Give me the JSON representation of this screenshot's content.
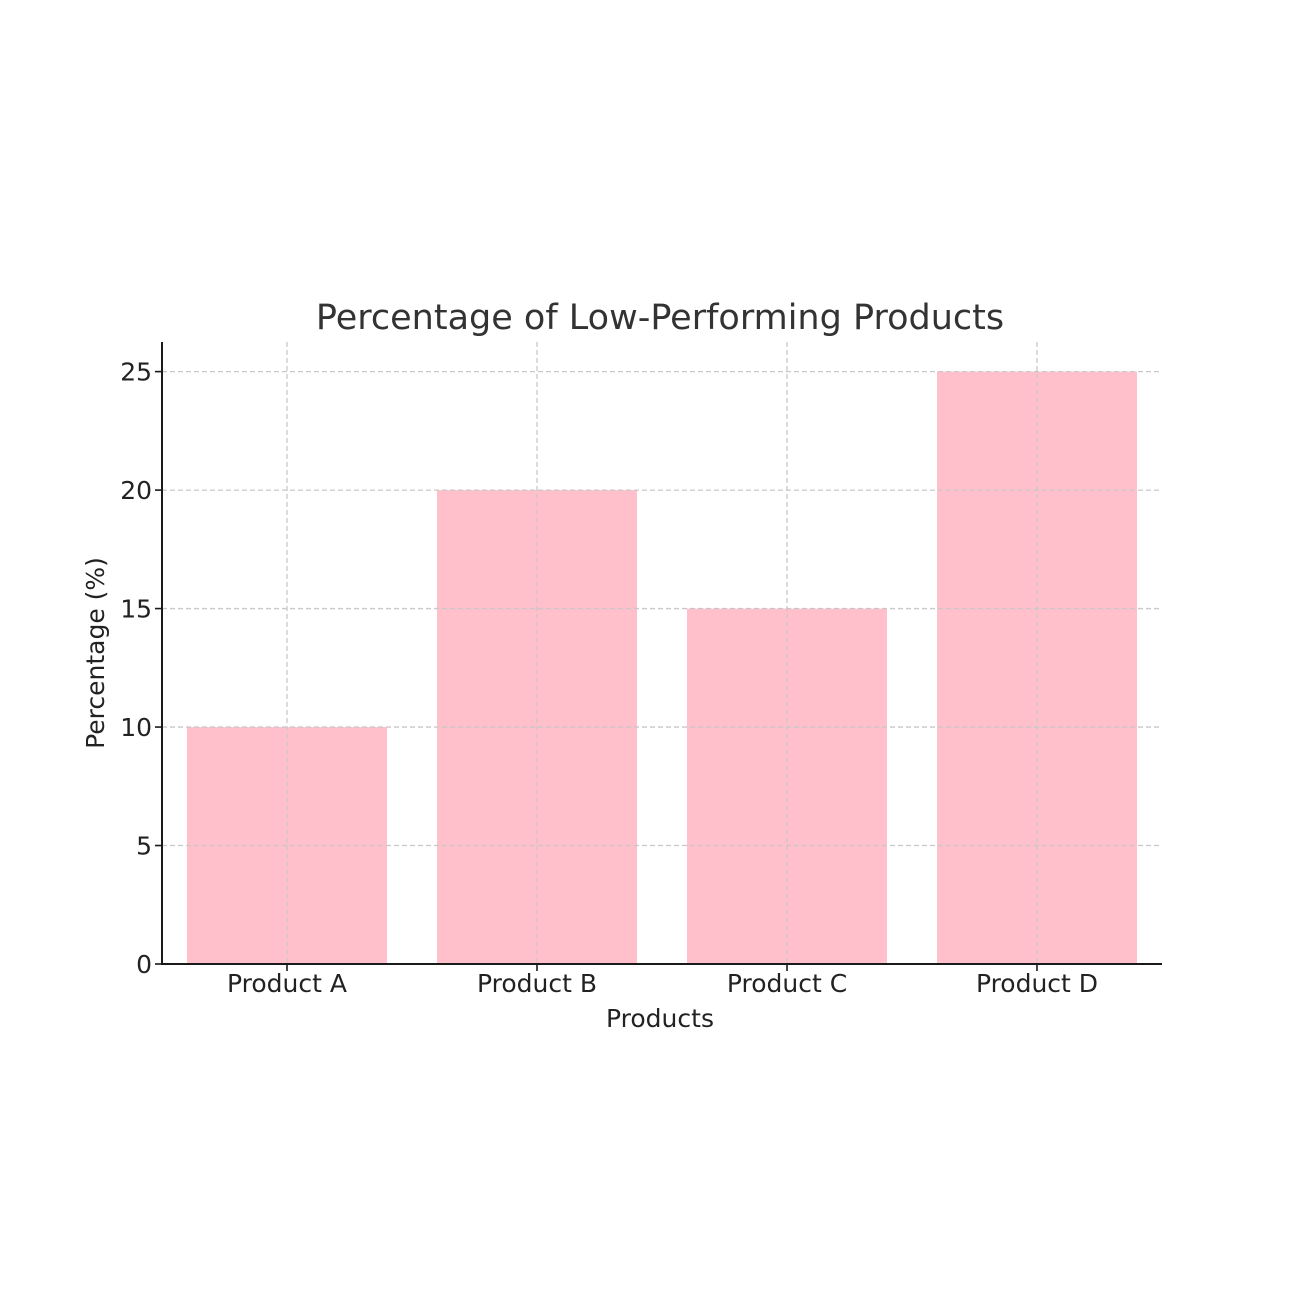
{
  "chart_data": {
    "type": "bar",
    "title": "Percentage of Low-Performing Products",
    "xlabel": "Products",
    "ylabel": "Percentage (%)",
    "categories": [
      "Product A",
      "Product B",
      "Product C",
      "Product D"
    ],
    "values": [
      10,
      20,
      15,
      25
    ],
    "ylim": [
      0,
      26.25
    ],
    "yticks": [
      0,
      5,
      10,
      15,
      20,
      25
    ],
    "grid": true,
    "bar_color": "#ffc0cb"
  }
}
